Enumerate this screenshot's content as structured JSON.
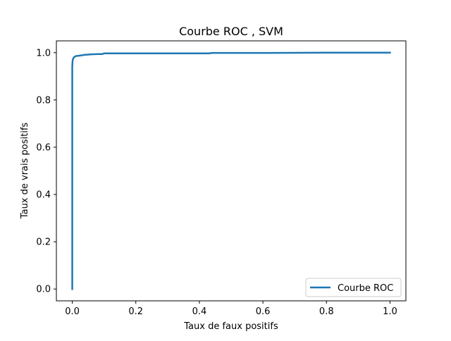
{
  "chart_data": {
    "type": "line",
    "title": "Courbe ROC , SVM",
    "xlabel": "Taux de faux positifs",
    "ylabel": "Taux de vrais positifs",
    "xlim": [
      -0.05,
      1.05
    ],
    "ylim": [
      -0.05,
      1.05
    ],
    "xticks": [
      0.0,
      0.2,
      0.4,
      0.6,
      0.8,
      1.0
    ],
    "yticks": [
      0.0,
      0.2,
      0.4,
      0.6,
      0.8,
      1.0
    ],
    "xtick_labels": [
      "0.0",
      "0.2",
      "0.4",
      "0.6",
      "0.8",
      "1.0"
    ],
    "ytick_labels": [
      "0.0",
      "0.2",
      "0.4",
      "0.6",
      "0.8",
      "1.0"
    ],
    "grid": false,
    "legend_position": "lower-right",
    "series": [
      {
        "name": "Courbe ROC",
        "color": "#1f77b4",
        "x": [
          0.0,
          0.0,
          0.0,
          0.001,
          0.002,
          0.003,
          0.005,
          0.008,
          0.012,
          0.02,
          0.03,
          0.04,
          0.05,
          0.06,
          0.08,
          0.095,
          0.1,
          0.2,
          0.3,
          0.43,
          0.44,
          0.6,
          0.8,
          1.0
        ],
        "y": [
          0.0,
          0.6,
          0.94,
          0.965,
          0.972,
          0.975,
          0.98,
          0.983,
          0.986,
          0.987,
          0.989,
          0.991,
          0.992,
          0.993,
          0.994,
          0.994,
          0.997,
          0.997,
          0.997,
          0.997,
          0.999,
          0.999,
          1.0,
          1.0
        ]
      }
    ]
  }
}
